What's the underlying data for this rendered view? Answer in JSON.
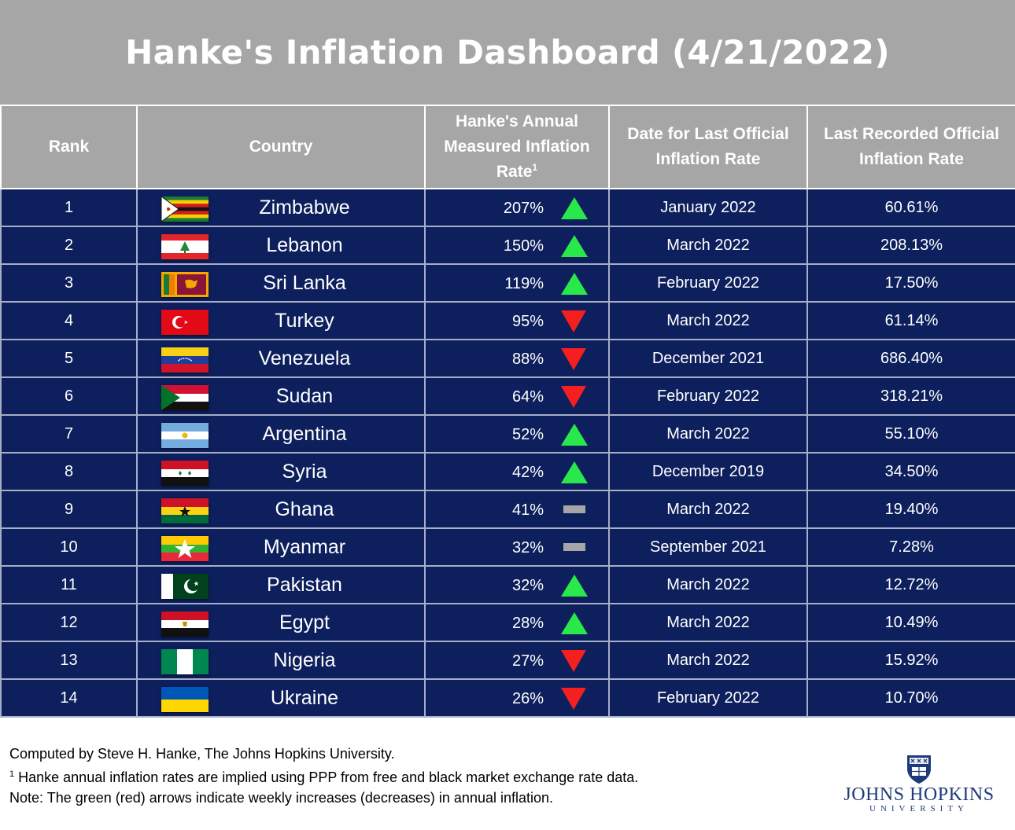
{
  "title": "Hanke's Inflation Dashboard (4/21/2022)",
  "headers": {
    "rank": "Rank",
    "country": "Country",
    "hanke_rate_line1": "Hanke's Annual",
    "hanke_rate_line2": "Measured Inflation",
    "hanke_rate_line3": "Rate",
    "hanke_rate_sup": "1",
    "date_line1": "Date for Last Official",
    "date_line2": "Inflation Rate",
    "official_line1": "Last Recorded Official",
    "official_line2": "Inflation Rate"
  },
  "colors": {
    "header_gray": "#a6a6a6",
    "row_navy": "#0d1f5c",
    "arrow_up": "#29e84c",
    "arrow_down": "#f51f1f",
    "no_change": "#a6a6a6"
  },
  "rows": [
    {
      "rank": "1",
      "country": "Zimbabwe",
      "flag": "zimbabwe-flag",
      "hanke_rate": "207%",
      "trend": "up",
      "date": "January 2022",
      "official_rate": "60.61%"
    },
    {
      "rank": "2",
      "country": "Lebanon",
      "flag": "lebanon-flag",
      "hanke_rate": "150%",
      "trend": "up",
      "date": "March 2022",
      "official_rate": "208.13%"
    },
    {
      "rank": "3",
      "country": "Sri Lanka",
      "flag": "sri-lanka-flag",
      "hanke_rate": "119%",
      "trend": "up",
      "date": "February 2022",
      "official_rate": "17.50%"
    },
    {
      "rank": "4",
      "country": "Turkey",
      "flag": "turkey-flag",
      "hanke_rate": "95%",
      "trend": "down",
      "date": "March 2022",
      "official_rate": "61.14%"
    },
    {
      "rank": "5",
      "country": "Venezuela",
      "flag": "venezuela-flag",
      "hanke_rate": "88%",
      "trend": "down",
      "date": "December 2021",
      "official_rate": "686.40%"
    },
    {
      "rank": "6",
      "country": "Sudan",
      "flag": "sudan-flag",
      "hanke_rate": "64%",
      "trend": "down",
      "date": "February 2022",
      "official_rate": "318.21%"
    },
    {
      "rank": "7",
      "country": "Argentina",
      "flag": "argentina-flag",
      "hanke_rate": "52%",
      "trend": "up",
      "date": "March 2022",
      "official_rate": "55.10%"
    },
    {
      "rank": "8",
      "country": "Syria",
      "flag": "syria-flag",
      "hanke_rate": "42%",
      "trend": "up",
      "date": "December 2019",
      "official_rate": "34.50%"
    },
    {
      "rank": "9",
      "country": "Ghana",
      "flag": "ghana-flag",
      "hanke_rate": "41%",
      "trend": "flat",
      "date": "March 2022",
      "official_rate": "19.40%"
    },
    {
      "rank": "10",
      "country": "Myanmar",
      "flag": "myanmar-flag",
      "hanke_rate": "32%",
      "trend": "flat",
      "date": "September 2021",
      "official_rate": "7.28%"
    },
    {
      "rank": "11",
      "country": "Pakistan",
      "flag": "pakistan-flag",
      "hanke_rate": "32%",
      "trend": "up",
      "date": "March 2022",
      "official_rate": "12.72%"
    },
    {
      "rank": "12",
      "country": "Egypt",
      "flag": "egypt-flag",
      "hanke_rate": "28%",
      "trend": "up",
      "date": "March 2022",
      "official_rate": "10.49%"
    },
    {
      "rank": "13",
      "country": "Nigeria",
      "flag": "nigeria-flag",
      "hanke_rate": "27%",
      "trend": "down",
      "date": "March 2022",
      "official_rate": "15.92%"
    },
    {
      "rank": "14",
      "country": "Ukraine",
      "flag": "ukraine-flag",
      "hanke_rate": "26%",
      "trend": "down",
      "date": "February 2022",
      "official_rate": "10.70%"
    }
  ],
  "footnotes": {
    "credit": "Computed by Steve H. Hanke, The Johns Hopkins University.",
    "note1_sup": "1",
    "note1": " Hanke annual inflation rates are implied using PPP from free and black market exchange rate data.",
    "note2": "Note: The green (red) arrows indicate weekly increases (decreases) in annual inflation."
  },
  "logo": {
    "name": "JOHNS HOPKINS",
    "sub": "UNIVERSITY",
    "icon": "university-shield-icon"
  }
}
